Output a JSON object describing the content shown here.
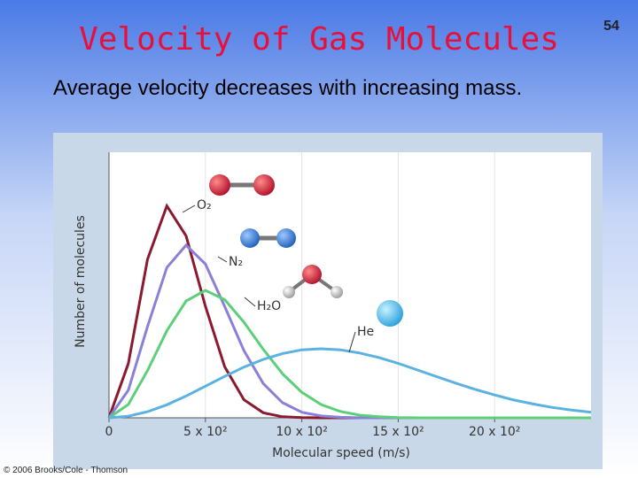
{
  "slide": {
    "title": "Velocity of Gas Molecules",
    "subtitle": "Average velocity decreases with increasing mass.",
    "page_number": "54",
    "credit": "© 2006 Brooks/Cole - Thomson"
  },
  "chart_data": {
    "type": "line",
    "x_label": "Molecular speed (m/s)",
    "y_label": "Number of molecules",
    "x": [
      0,
      100,
      200,
      300,
      400,
      500,
      600,
      700,
      800,
      900,
      1000,
      1100,
      1200,
      1300,
      1400,
      1500,
      1600,
      1700,
      1800,
      1900,
      2000,
      2100,
      2200,
      2300,
      2400,
      2500
    ],
    "xlim": [
      0,
      2500
    ],
    "ylim": [
      0,
      100
    ],
    "xticks": [
      0,
      {
        "value": 500,
        "label": "5 x 10²"
      },
      {
        "value": 1000,
        "label": "10 x 10²"
      },
      {
        "value": 1500,
        "label": "15 x 10²"
      },
      {
        "value": 2000,
        "label": "20 x 10²"
      }
    ],
    "grid": true,
    "series": [
      {
        "name": "O₂",
        "color": "#8b1a2e",
        "values": [
          0,
          20.4,
          59.7,
          79.8,
          68.5,
          42.0,
          19.2,
          6.8,
          1.9,
          0.4,
          0.1,
          0,
          0,
          0,
          0,
          0,
          0,
          0,
          0,
          0,
          0,
          0,
          0,
          0,
          0,
          0
        ]
      },
      {
        "name": "N₂",
        "color": "#8a80d8",
        "values": [
          0,
          10.4,
          34.4,
          56.6,
          65,
          57.9,
          41.9,
          25.3,
          12.9,
          5.7,
          2.1,
          0.7,
          0.2,
          0,
          0,
          0,
          0,
          0,
          0,
          0,
          0,
          0,
          0,
          0,
          0,
          0
        ]
      },
      {
        "name": "H₂O",
        "color": "#5ccf78",
        "values": [
          0,
          5.0,
          17.8,
          32.8,
          44.0,
          48,
          44.5,
          36.0,
          25.8,
          16.6,
          9.6,
          5.0,
          2.4,
          1.0,
          0.4,
          0.1,
          0,
          0,
          0,
          0,
          0,
          0,
          0,
          0,
          0,
          0
        ]
      },
      {
        "name": "He",
        "color": "#5ab2e0",
        "values": [
          0,
          0.6,
          2.3,
          4.9,
          8.2,
          11.9,
          15.6,
          19.1,
          22.0,
          24.2,
          25.6,
          26,
          25.6,
          24.4,
          22.7,
          20.5,
          18.0,
          15.5,
          13.0,
          10.7,
          8.6,
          6.7,
          5.2,
          3.9,
          2.9,
          2.1
        ]
      }
    ]
  }
}
